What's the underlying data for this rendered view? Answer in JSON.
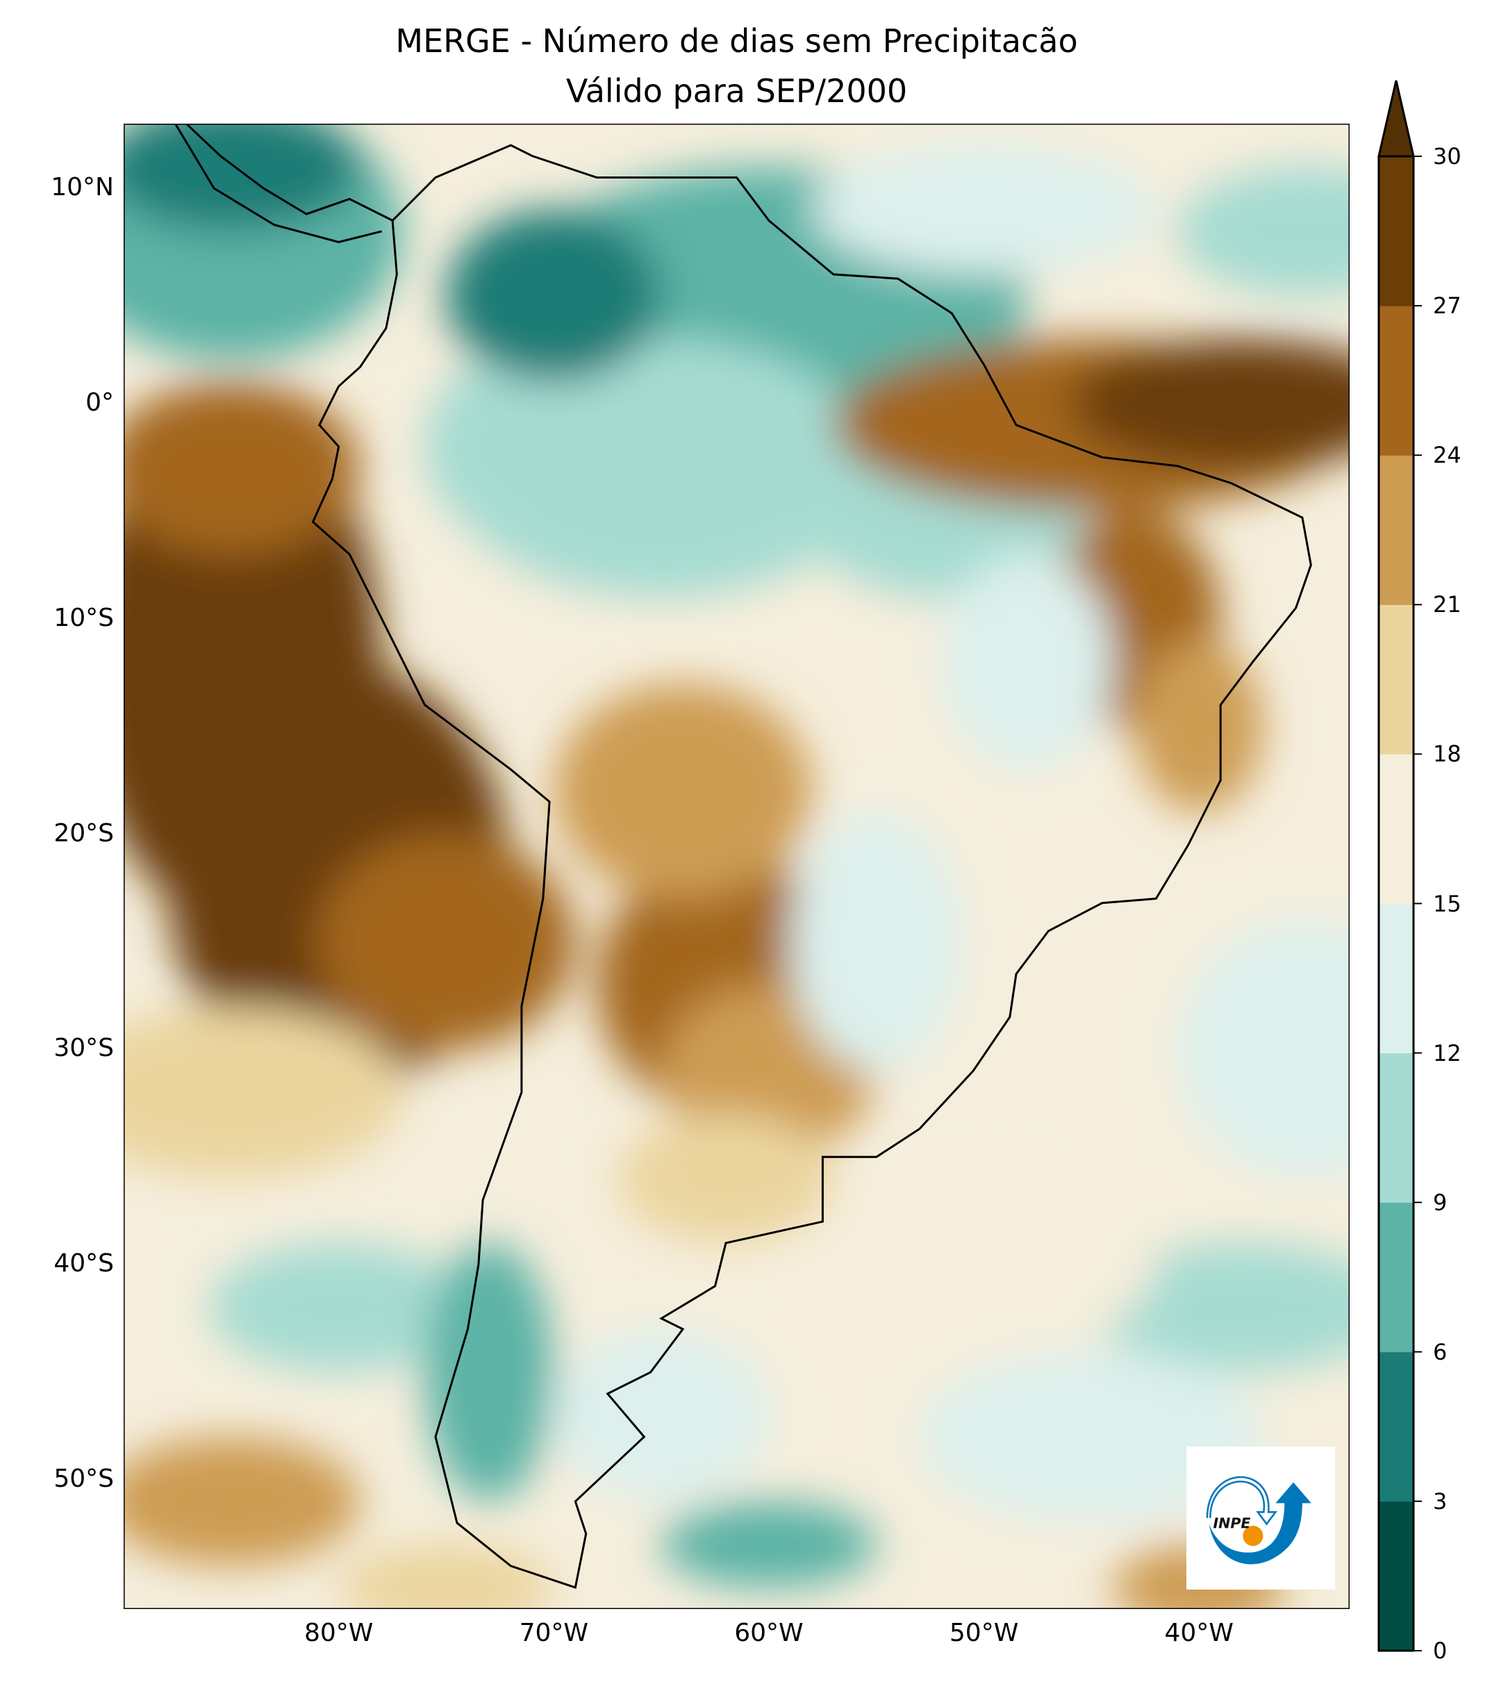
{
  "title": {
    "line1": "MERGE - Número de dias sem Precipitacão",
    "line2": "Válido para SEP/2000"
  },
  "map": {
    "extent": {
      "lon_min": -90,
      "lon_max": -33,
      "lat_min": -56,
      "lat_max": 13
    },
    "lat_ticks": [
      {
        "value": 10,
        "label": "10°N"
      },
      {
        "value": 0,
        "label": "0°"
      },
      {
        "value": -10,
        "label": "10°S"
      },
      {
        "value": -20,
        "label": "20°S"
      },
      {
        "value": -30,
        "label": "30°S"
      },
      {
        "value": -40,
        "label": "40°S"
      },
      {
        "value": -50,
        "label": "50°S"
      }
    ],
    "lon_ticks": [
      {
        "value": -80,
        "label": "80°W"
      },
      {
        "value": -70,
        "label": "70°W"
      },
      {
        "value": -60,
        "label": "60°W"
      },
      {
        "value": -50,
        "label": "50°W"
      },
      {
        "value": -40,
        "label": "40°W"
      }
    ]
  },
  "colorbar": {
    "levels": [
      0,
      3,
      6,
      9,
      12,
      15,
      18,
      21,
      24,
      27,
      30
    ],
    "labels": [
      "0",
      "3",
      "6",
      "9",
      "12",
      "15",
      "18",
      "21",
      "24",
      "27",
      "30"
    ],
    "colors": [
      "#004d43",
      "#1b7c76",
      "#5cb3a6",
      "#a6dbd2",
      "#ddf0ed",
      "#f5eedc",
      "#ebd59f",
      "#cd9c53",
      "#a3661c",
      "#6b3d07"
    ],
    "extend_color": "#543005",
    "extend": "max"
  },
  "logo": {
    "text": "INPE",
    "blue": "#0077bb",
    "orange": "#f39200"
  }
}
